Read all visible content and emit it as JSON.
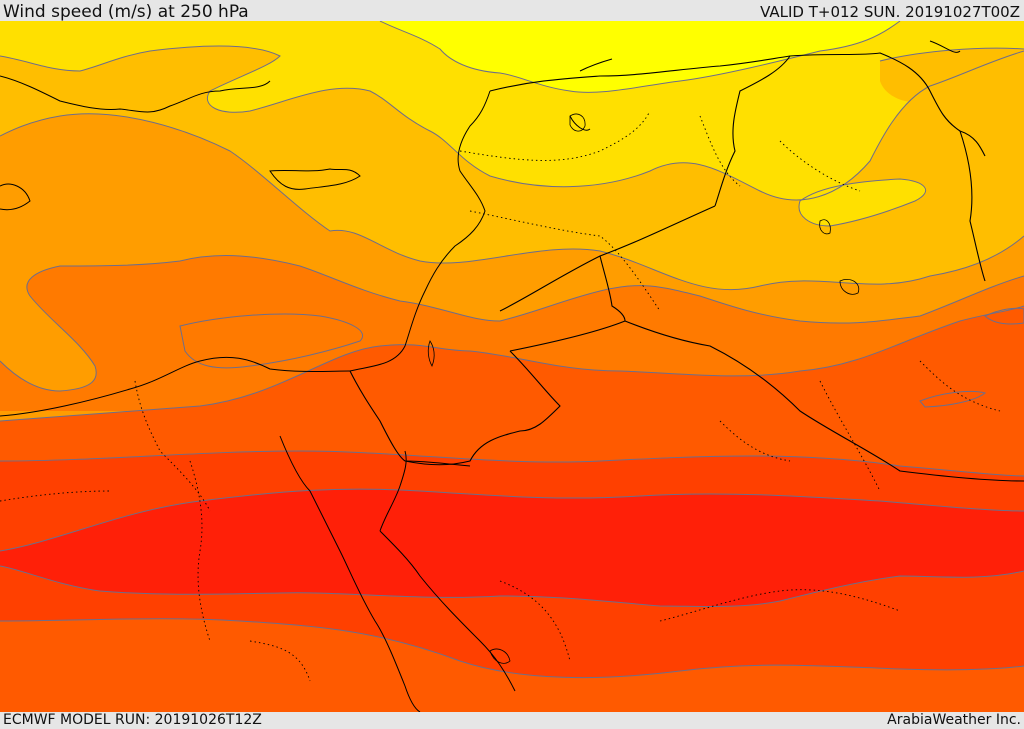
{
  "header": {
    "title": "Wind speed (m/s) at 250 hPa",
    "valid": "VALID T+012 SUN. 20191027T00Z"
  },
  "footer": {
    "model_run": "ECMWF MODEL RUN: 20191026T12Z",
    "credit": "ArabiaWeather Inc."
  },
  "map": {
    "colors": {
      "band_lightest": "#ffff00",
      "band_yellow": "#ffe000",
      "band_gold": "#ffbe00",
      "band_amber": "#ff9d00",
      "band_orange": "#ff7a00",
      "band_deep_orange": "#ff5a00",
      "band_red_orange": "#ff4000",
      "band_red": "#ff2008",
      "contour_line": "#6e6e8a",
      "border_line": "#000000"
    }
  }
}
